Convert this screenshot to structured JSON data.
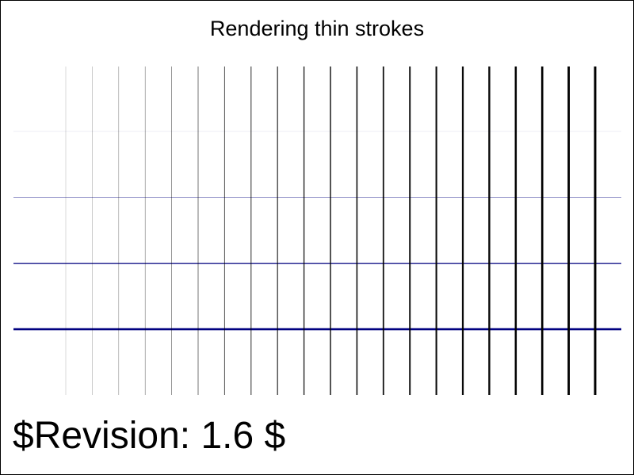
{
  "title": "Rendering thin strokes",
  "revision": "$Revision: 1.6 $",
  "colors": {
    "vertical_stroke": "#000000",
    "horizontal_stroke": "#000080",
    "background": "#ffffff",
    "border": "#000000"
  },
  "vertical_strokes": {
    "count": 21,
    "widths": [
      0.1,
      0.2,
      0.3,
      0.4,
      0.5,
      0.6,
      0.7,
      0.8,
      0.9,
      1.0,
      1.1,
      1.2,
      1.3,
      1.4,
      1.5,
      1.6,
      1.7,
      1.8,
      1.9,
      2.0,
      2.1
    ],
    "opacities": [
      0.25,
      0.35,
      0.45,
      0.55,
      0.6,
      0.65,
      0.7,
      0.75,
      0.8,
      0.85,
      0.88,
      0.9,
      0.92,
      0.94,
      0.96,
      0.97,
      0.98,
      0.99,
      1.0,
      1.0,
      1.0
    ]
  },
  "horizontal_strokes": {
    "count": 4,
    "widths": [
      0.1,
      0.5,
      1.0,
      2.0
    ],
    "opacities": [
      0.15,
      0.55,
      0.9,
      1.0
    ]
  }
}
